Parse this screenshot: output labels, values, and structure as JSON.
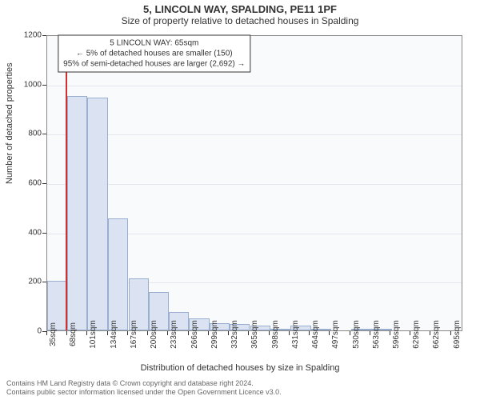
{
  "chart": {
    "type": "bar",
    "title": "5, LINCOLN WAY, SPALDING, PE11 1PF",
    "subtitle": "Size of property relative to detached houses in Spalding",
    "ylabel": "Number of detached properties",
    "xlabel": "Distribution of detached houses by size in Spalding",
    "background_color": "#f9fafc",
    "grid_color": "#e3e6ec",
    "axis_color": "#888888",
    "text_color": "#333333",
    "bar_fill": "#dbe3f2",
    "bar_border": "#9aaed0",
    "marker_color": "#d23030",
    "marker_value_sqm": 65,
    "title_fontsize": 13,
    "subtitle_fontsize": 12,
    "label_fontsize": 11,
    "tick_fontsize": 10,
    "annotation_fontsize": 10,
    "x_range": [
      35,
      715
    ],
    "bar_width_sqm": 33,
    "y_range": [
      0,
      1200
    ],
    "y_ticks": [
      0,
      200,
      400,
      600,
      800,
      1000,
      1200
    ],
    "x_ticks_start": 35,
    "x_ticks_step": 33,
    "x_ticks_count": 21,
    "bars": [
      {
        "x0": 35,
        "value": 200
      },
      {
        "x0": 68,
        "value": 950
      },
      {
        "x0": 101,
        "value": 945
      },
      {
        "x0": 134,
        "value": 455
      },
      {
        "x0": 168,
        "value": 210
      },
      {
        "x0": 201,
        "value": 155
      },
      {
        "x0": 234,
        "value": 75
      },
      {
        "x0": 267,
        "value": 50
      },
      {
        "x0": 300,
        "value": 30
      },
      {
        "x0": 333,
        "value": 25
      },
      {
        "x0": 367,
        "value": 20
      },
      {
        "x0": 400,
        "value": 5
      },
      {
        "x0": 433,
        "value": 18
      },
      {
        "x0": 466,
        "value": 3
      },
      {
        "x0": 499,
        "value": 0
      },
      {
        "x0": 532,
        "value": 2
      },
      {
        "x0": 565,
        "value": 2
      },
      {
        "x0": 599,
        "value": 0
      },
      {
        "x0": 632,
        "value": 0
      },
      {
        "x0": 665,
        "value": 0
      },
      {
        "x0": 698,
        "value": 0
      }
    ],
    "annotation": {
      "line1": "5 LINCOLN WAY: 65sqm",
      "line2": "← 5% of detached houses are smaller (150)",
      "line3": "95% of semi-detached houses are larger (2,692) →",
      "box_x_sqm": 210,
      "box_y_value": 1130
    }
  },
  "attribution": {
    "line1": "Contains HM Land Registry data © Crown copyright and database right 2024.",
    "line2": "Contains public sector information licensed under the Open Government Licence v3.0."
  }
}
